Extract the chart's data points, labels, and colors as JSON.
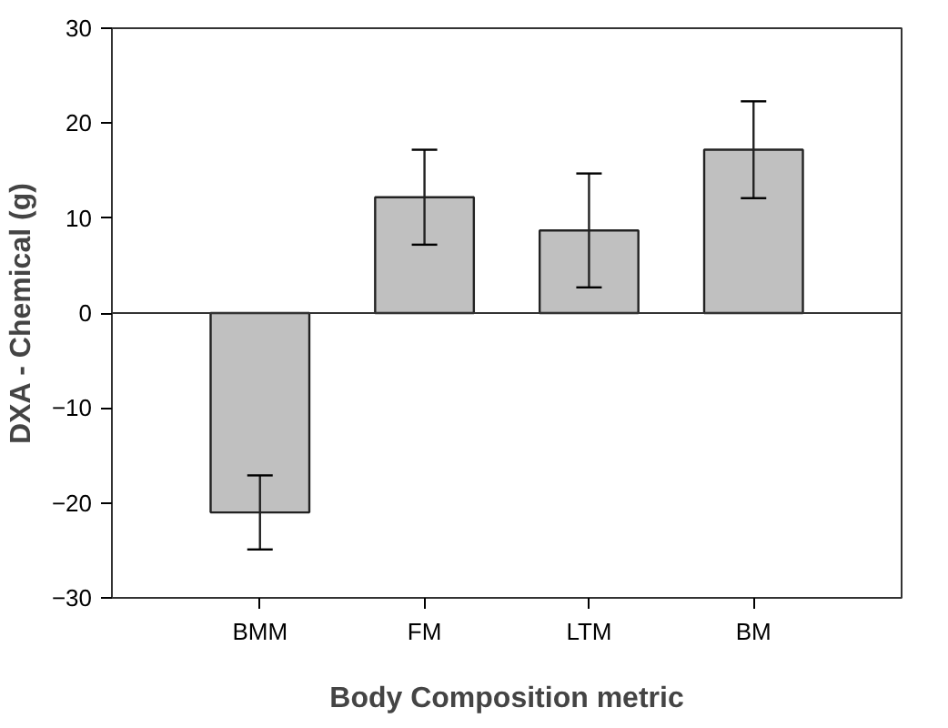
{
  "chart_data": {
    "type": "bar",
    "xlabel": "Body Composition metric",
    "ylabel": "DXA - Chemical (g)",
    "categories": [
      "BMM",
      "FM",
      "LTM",
      "BM"
    ],
    "values": [
      -21.0,
      12.2,
      8.7,
      17.2
    ],
    "errors": [
      3.9,
      5.0,
      6.0,
      5.1
    ],
    "color": "#c0c0c0",
    "ylim": [
      -30,
      30
    ],
    "yticks": [
      -30,
      -20,
      -10,
      0,
      10,
      20,
      30
    ],
    "ref_lines": [
      {
        "axis": "y",
        "value": 0,
        "color": "#333333"
      }
    ]
  }
}
